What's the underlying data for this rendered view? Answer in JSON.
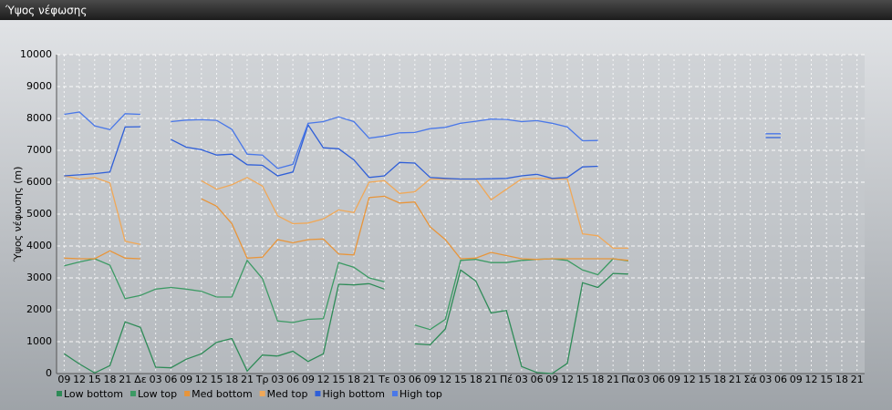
{
  "window_title": "Ύψος νέφωσης",
  "chart_data": {
    "type": "line",
    "y_label": "Ύψος νέφωσης (m)",
    "categories": [
      "09",
      "12",
      "15",
      "18",
      "21",
      "Δε",
      "03",
      "06",
      "09",
      "12",
      "15",
      "18",
      "21",
      "Τρ",
      "03",
      "06",
      "09",
      "12",
      "15",
      "18",
      "21",
      "Τε",
      "03",
      "06",
      "09",
      "12",
      "15",
      "18",
      "21",
      "Πέ",
      "03",
      "06",
      "09",
      "12",
      "15",
      "18",
      "21",
      "Πα",
      "03",
      "06",
      "09",
      "12",
      "15",
      "18",
      "21",
      "Σά",
      "03",
      "06",
      "09",
      "12",
      "15",
      "18",
      "21"
    ],
    "ylim": [
      0,
      10000
    ],
    "yticks": [
      0,
      1000,
      2000,
      3000,
      4000,
      5000,
      6000,
      7000,
      8000,
      9000,
      10000
    ],
    "grid": true,
    "series": [
      {
        "name": "Low bottom",
        "color": "#2e8b57",
        "values": [
          620,
          300,
          20,
          250,
          1620,
          1450,
          200,
          180,
          450,
          620,
          980,
          1100,
          80,
          580,
          550,
          700,
          380,
          620,
          2800,
          2780,
          2820,
          2650,
          null,
          930,
          900,
          1400,
          3250,
          2900,
          1900,
          1980,
          220,
          30,
          0,
          320,
          2850,
          2700,
          3140,
          3120,
          null,
          null,
          null,
          null,
          null,
          null,
          null,
          null,
          null,
          null,
          null,
          null,
          null,
          null,
          null
        ]
      },
      {
        "name": "Low top",
        "color": "#3c9a64",
        "values": [
          3380,
          3500,
          3600,
          3400,
          2350,
          2450,
          2650,
          2700,
          2650,
          2580,
          2400,
          2400,
          3550,
          2980,
          1650,
          1600,
          1700,
          1720,
          3480,
          3330,
          3000,
          2880,
          null,
          1520,
          1380,
          1700,
          3550,
          3580,
          3480,
          3480,
          3550,
          3580,
          3600,
          3550,
          3250,
          3100,
          3600,
          3530,
          null,
          null,
          null,
          null,
          null,
          null,
          null,
          null,
          null,
          null,
          null,
          null,
          null,
          null,
          null
        ]
      },
      {
        "name": "Med bottom",
        "color": "#e8953a",
        "values": [
          3620,
          3600,
          3600,
          3850,
          3620,
          3600,
          null,
          null,
          null,
          5480,
          5250,
          4700,
          3620,
          3650,
          4200,
          4100,
          4200,
          4220,
          3750,
          3720,
          5520,
          5560,
          5350,
          5380,
          4600,
          4200,
          3600,
          3620,
          3800,
          3700,
          3600,
          3580,
          3600,
          3600,
          3600,
          3600,
          3600,
          3550,
          null,
          null,
          null,
          null,
          null,
          null,
          null,
          null,
          null,
          null,
          null,
          null,
          null,
          null,
          null
        ]
      },
      {
        "name": "Med top",
        "color": "#f0a858",
        "values": [
          6200,
          6100,
          6150,
          5980,
          4150,
          4050,
          null,
          null,
          null,
          6050,
          5780,
          5920,
          6150,
          5880,
          4950,
          4700,
          4720,
          4850,
          5130,
          5050,
          6000,
          6050,
          5650,
          5700,
          6100,
          6100,
          6100,
          6100,
          5450,
          5780,
          6100,
          6120,
          6100,
          6100,
          4380,
          4320,
          3930,
          3930,
          null,
          null,
          null,
          null,
          null,
          null,
          null,
          null,
          null,
          null,
          null,
          null,
          null,
          null,
          null
        ]
      },
      {
        "name": "High bottom",
        "color": "#2f5fd8",
        "values": [
          6200,
          6230,
          6270,
          6320,
          7730,
          7740,
          null,
          7340,
          7100,
          7020,
          6850,
          6880,
          6550,
          6530,
          6200,
          6320,
          7800,
          7080,
          7050,
          6700,
          6150,
          6200,
          6620,
          6600,
          6150,
          6120,
          6100,
          6100,
          6110,
          6120,
          6200,
          6250,
          6120,
          6150,
          6480,
          6500,
          null,
          null,
          null,
          null,
          null,
          null,
          null,
          null,
          null,
          null,
          7400,
          7400,
          null,
          null,
          null,
          null,
          null
        ]
      },
      {
        "name": "High top",
        "color": "#4a78e8",
        "values": [
          8130,
          8200,
          7770,
          7650,
          8150,
          8130,
          null,
          7900,
          7950,
          7960,
          7940,
          7660,
          6880,
          6850,
          6430,
          6560,
          7850,
          7900,
          8050,
          7900,
          7380,
          7450,
          7550,
          7560,
          7680,
          7720,
          7850,
          7910,
          7980,
          7970,
          7900,
          7930,
          7850,
          7730,
          7300,
          7310,
          null,
          null,
          null,
          null,
          null,
          null,
          null,
          null,
          null,
          null,
          7520,
          7520,
          null,
          null,
          null,
          null,
          null
        ]
      }
    ]
  }
}
